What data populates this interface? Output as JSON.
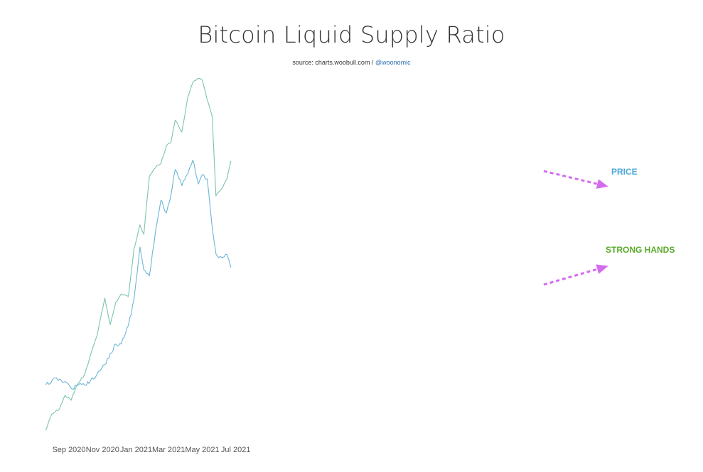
{
  "header": {
    "title": "Bitcoin Liquid Supply Ratio",
    "source_prefix": "source: charts.woobull.com / ",
    "source_handle": "@woonomic"
  },
  "chart_data": {
    "type": "line",
    "title": "Bitcoin Liquid Supply Ratio",
    "subtitle": "source: charts.woobull.com / @woonomic",
    "x_ticks": [
      "Sep 2020",
      "Nov 2020",
      "Jan 2021",
      "Mar 2021",
      "May 2021",
      "Jul 2021"
    ],
    "series": [
      {
        "name": "PRICE",
        "color": "#6bb6d6",
        "x": [
          "2020-07-21",
          "2020-08-01",
          "2020-08-15",
          "2020-08-25",
          "2020-09-05",
          "2020-09-15",
          "2020-09-30",
          "2020-10-10",
          "2020-10-22",
          "2020-11-05",
          "2020-11-15",
          "2020-11-25",
          "2020-12-05",
          "2020-12-18",
          "2020-12-28",
          "2021-01-08",
          "2021-01-15",
          "2021-01-25",
          "2021-02-08",
          "2021-02-15",
          "2021-02-25",
          "2021-03-05",
          "2021-03-13",
          "2021-03-25",
          "2021-04-05",
          "2021-04-14",
          "2021-04-24",
          "2021-05-01",
          "2021-05-10",
          "2021-05-19",
          "2021-05-26",
          "2021-06-05",
          "2021-06-15",
          "2021-06-22"
        ],
        "values": [
          4.8,
          5.3,
          5.5,
          5.2,
          4.4,
          4.7,
          4.8,
          5.3,
          6.1,
          7.2,
          8.5,
          9.6,
          9.6,
          11.8,
          14.8,
          21.0,
          18.3,
          17.6,
          23.9,
          26.5,
          25.0,
          27.0,
          30.1,
          28.2,
          29.6,
          31.2,
          28.4,
          29.5,
          29.0,
          23.4,
          20.2,
          19.8,
          20.1,
          18.6
        ]
      },
      {
        "name": "STRONG HANDS",
        "color": "#7cc3b0",
        "x": [
          "2020-07-21",
          "2020-08-01",
          "2020-08-15",
          "2020-08-25",
          "2020-09-05",
          "2020-09-15",
          "2020-09-30",
          "2020-10-10",
          "2020-10-22",
          "2020-11-05",
          "2020-11-15",
          "2020-11-25",
          "2020-12-05",
          "2020-12-18",
          "2020-12-28",
          "2021-01-08",
          "2021-01-15",
          "2021-01-25",
          "2021-02-08",
          "2021-02-15",
          "2021-02-25",
          "2021-03-05",
          "2021-03-13",
          "2021-03-25",
          "2021-04-05",
          "2021-04-14",
          "2021-04-24",
          "2021-05-01",
          "2021-05-10",
          "2021-05-19",
          "2021-05-26",
          "2021-06-05",
          "2021-06-15",
          "2021-06-22"
        ],
        "values": [
          -0.5,
          1.4,
          2.0,
          3.6,
          3.0,
          4.7,
          6.1,
          8.3,
          10.6,
          15.0,
          11.9,
          14.5,
          15.5,
          15.2,
          20.7,
          23.6,
          22.5,
          29.3,
          30.6,
          30.8,
          32.9,
          33.2,
          35.9,
          34.5,
          38.6,
          40.3,
          40.8,
          40.6,
          38.3,
          36.4,
          27.0,
          27.8,
          29.0,
          31.1
        ]
      }
    ],
    "annotations": [
      {
        "text": "PRICE",
        "color": "#4aa8d8"
      },
      {
        "text": "STRONG HANDS",
        "color": "#5aaa2a"
      }
    ],
    "arrow_color": "#d46cf0"
  }
}
